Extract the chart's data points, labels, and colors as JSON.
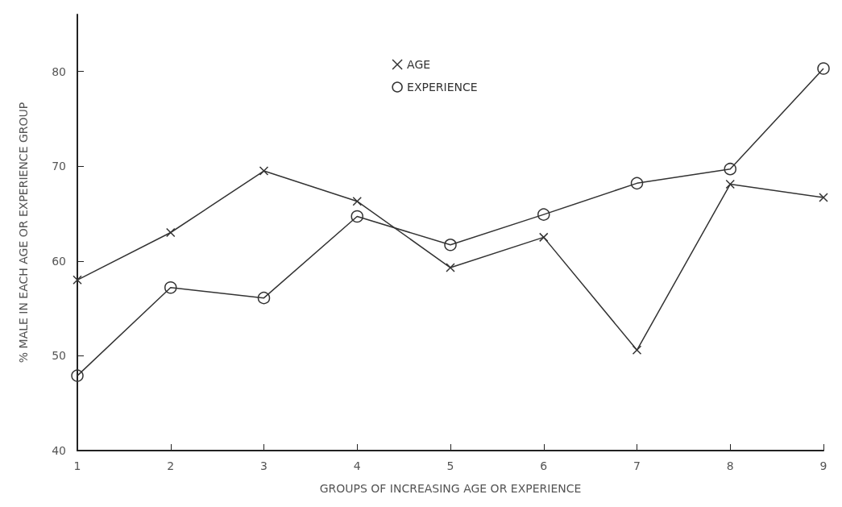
{
  "chart_data": {
    "type": "line",
    "xlabel": "GROUPS OF INCREASING AGE OR EXPERIENCE",
    "ylabel": "% MALE IN EACH AGE OR EXPERIENCE GROUP",
    "x": [
      1,
      2,
      3,
      4,
      5,
      6,
      7,
      8,
      9
    ],
    "series": [
      {
        "name": "AGE",
        "color": "#333333",
        "marker": "cross",
        "values": [
          58,
          63,
          69.5,
          66.3,
          59.3,
          62.5,
          50.6,
          68.1,
          66.7
        ]
      },
      {
        "name": "EXPERIENCE",
        "color": "#333333",
        "marker": "circle",
        "values": [
          47.9,
          57.2,
          56.1,
          64.7,
          61.7,
          64.9,
          68.2,
          69.7,
          80.3
        ]
      }
    ],
    "xlim": [
      1,
      9
    ],
    "xticks": [
      1,
      2,
      3,
      4,
      5,
      6,
      7,
      8,
      9
    ],
    "ylim": [
      40,
      86
    ],
    "yticks": [
      40,
      50,
      60,
      70,
      80
    ],
    "grid": false,
    "legend": "top",
    "line_style": "solid"
  }
}
